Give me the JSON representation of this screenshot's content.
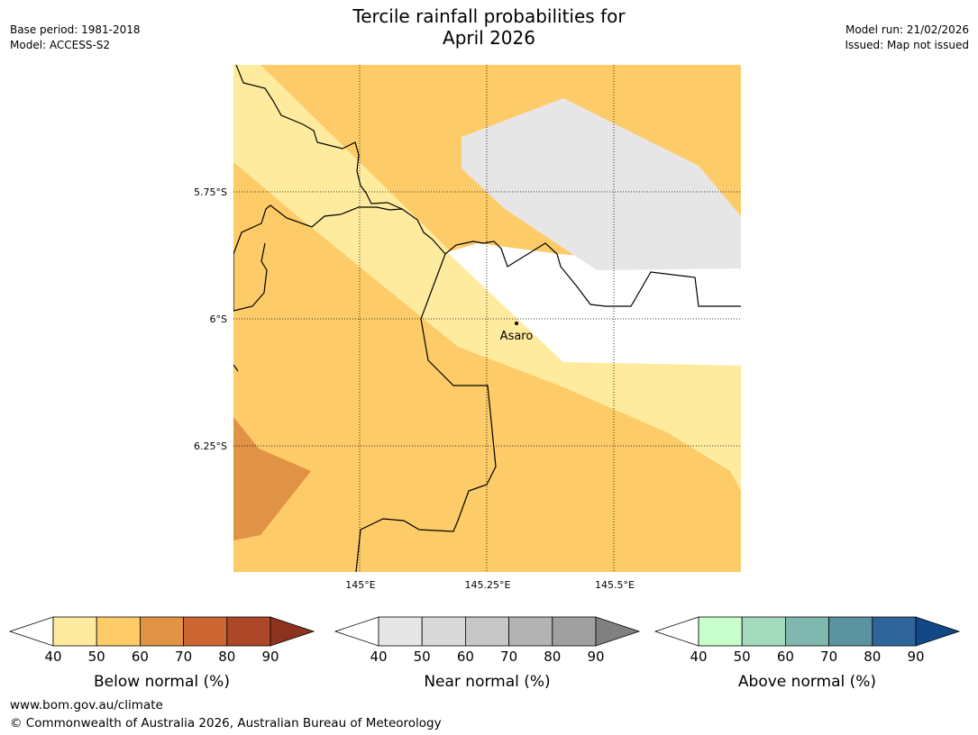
{
  "header": {
    "title_line1": "Tercile rainfall probabilities for",
    "title_line2": "April 2026",
    "base_period": "Base period: 1981-2018",
    "model": "Model: ACCESS-S2",
    "model_run": "Model run: 21/02/2026",
    "issued": "Issued: Map not issued"
  },
  "map": {
    "lat_labels": [
      "5.75°S",
      "6°S",
      "6.25°S"
    ],
    "lon_labels": [
      "145°E",
      "145.25°E",
      "145.5°E"
    ],
    "place_name": "Asaro",
    "colors": {
      "below_40_50": "#ffeb9e",
      "below_50_60": "#fdcb68",
      "below_60_70": "#e09245",
      "near_40_50": "#e6e6e6",
      "border": "#000000"
    }
  },
  "legends": [
    {
      "label": "Below normal (%)",
      "ticks": [
        "40",
        "50",
        "60",
        "70",
        "80",
        "90"
      ],
      "colors": [
        "#ffeb9e",
        "#fdcb68",
        "#e09245",
        "#cc6633",
        "#ad4727",
        "#8e3220"
      ]
    },
    {
      "label": "Near normal (%)",
      "ticks": [
        "40",
        "50",
        "60",
        "70",
        "80",
        "90"
      ],
      "colors": [
        "#e6e6e6",
        "#d9d9d9",
        "#c7c7c7",
        "#b3b3b3",
        "#a0a0a0",
        "#808080"
      ]
    },
    {
      "label": "Above normal (%)",
      "ticks": [
        "40",
        "50",
        "60",
        "70",
        "80",
        "90"
      ],
      "colors": [
        "#c9ffcc",
        "#a4dabd",
        "#80b8b0",
        "#5c93a0",
        "#2e6599",
        "#134887"
      ]
    }
  ],
  "footer": {
    "website": "www.bom.gov.au/climate",
    "copyright": "© Commonwealth of Australia 2026, Australian Bureau of Meteorology"
  }
}
